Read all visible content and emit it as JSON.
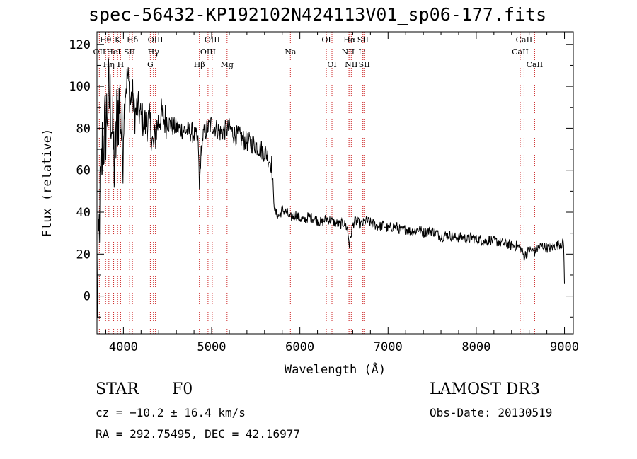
{
  "header": {
    "title": "spec-56432-KP192102N424113V01_sp06-177.fits"
  },
  "info": {
    "object_type": "STAR",
    "spectral_class": "F0",
    "survey": "LAMOST DR3",
    "cz": "cz = −10.2 ± 16.4 km/s",
    "obs_date": "Obs-Date: 20130519",
    "ra_dec": "RA = 292.75495, DEC =  42.16977"
  },
  "colors": {
    "spectrum": "#000000",
    "line_marker": "#cc2222",
    "axes": "#000000"
  },
  "chart_data": {
    "type": "line",
    "title": "spec-56432-KP192102N424113V01_sp06-177.fits",
    "xlabel": "Wavelength (Å)",
    "ylabel": "Flux (relative)",
    "xlim": [
      3700,
      9100
    ],
    "ylim": [
      -18,
      126
    ],
    "x_ticks": [
      4000,
      5000,
      6000,
      7000,
      8000,
      9000
    ],
    "y_ticks": [
      0,
      20,
      40,
      60,
      80,
      100,
      120
    ],
    "series": [
      {
        "name": "spectrum",
        "x": [
          3700,
          3730,
          3760,
          3800,
          3830,
          3860,
          3900,
          3930,
          3960,
          3990,
          4020,
          4050,
          4080,
          4100,
          4130,
          4160,
          4200,
          4250,
          4300,
          4340,
          4380,
          4420,
          4480,
          4550,
          4620,
          4700,
          4780,
          4820,
          4850,
          4861,
          4875,
          4900,
          4950,
          5000,
          5050,
          5100,
          5150,
          5200,
          5260,
          5320,
          5380,
          5440,
          5500,
          5560,
          5620,
          5680,
          5700,
          5720,
          5760,
          5800,
          5850,
          5890,
          5950,
          6000,
          6050,
          6100,
          6150,
          6200,
          6250,
          6300,
          6350,
          6400,
          6450,
          6500,
          6540,
          6563,
          6590,
          6620,
          6660,
          6700,
          6750,
          6800,
          6850,
          6900,
          6950,
          7000,
          7050,
          7100,
          7150,
          7200,
          7250,
          7300,
          7350,
          7400,
          7450,
          7500,
          7550,
          7600,
          7650,
          7700,
          7750,
          7800,
          7850,
          7900,
          7950,
          8000,
          8050,
          8100,
          8150,
          8200,
          8250,
          8300,
          8350,
          8400,
          8450,
          8498,
          8542,
          8600,
          8662,
          8700,
          8750,
          8800,
          8850,
          8900,
          8950,
          8990,
          9000
        ],
        "values": [
          -10,
          40,
          70,
          82,
          95,
          90,
          60,
          88,
          92,
          70,
          98,
          105,
          92,
          97,
          86,
          90,
          85,
          82,
          83,
          70,
          81,
          86,
          84,
          81,
          80,
          79,
          78,
          76,
          72,
          50,
          65,
          76,
          80,
          82,
          80,
          78,
          79,
          80,
          77,
          76,
          74,
          73,
          72,
          70,
          68,
          63,
          48,
          40,
          38,
          41,
          40,
          37,
          39,
          37,
          36,
          38,
          37,
          36,
          35,
          37,
          36,
          35,
          34,
          35,
          32,
          24,
          32,
          36,
          35,
          34,
          36,
          35,
          34,
          33,
          34,
          32,
          33,
          33,
          31,
          32,
          31,
          31,
          32,
          30,
          31,
          31,
          30,
          28,
          29,
          29,
          28,
          28,
          28,
          27,
          28,
          27,
          27,
          26,
          27,
          26,
          26,
          25,
          25,
          24,
          24,
          23,
          19,
          22,
          21,
          23,
          24,
          23,
          23,
          24,
          25,
          25,
          6
        ]
      }
    ],
    "line_markers": [
      {
        "label": "OII",
        "wavelength": 3727,
        "row": 1
      },
      {
        "label": "Hθ",
        "wavelength": 3798,
        "row": 0
      },
      {
        "label": "Hη",
        "wavelength": 3835,
        "row": 2
      },
      {
        "label": "HeI",
        "wavelength": 3889,
        "row": 1
      },
      {
        "label": "K",
        "wavelength": 3934,
        "row": 0
      },
      {
        "label": "H",
        "wavelength": 3968,
        "row": 2
      },
      {
        "label": "SII",
        "wavelength": 4070,
        "row": 1
      },
      {
        "label": "Hδ",
        "wavelength": 4102,
        "row": 0
      },
      {
        "label": "G",
        "wavelength": 4305,
        "row": 2
      },
      {
        "label": "Hγ",
        "wavelength": 4340,
        "row": 1
      },
      {
        "label": "OIII",
        "wavelength": 4363,
        "row": 0
      },
      {
        "label": "Hβ",
        "wavelength": 4861,
        "row": 2
      },
      {
        "label": "OIII",
        "wavelength": 4959,
        "row": 1
      },
      {
        "label": "OIII",
        "wavelength": 5007,
        "row": 0
      },
      {
        "label": "Mg",
        "wavelength": 5175,
        "row": 2
      },
      {
        "label": "Na",
        "wavelength": 5893,
        "row": 1
      },
      {
        "label": "OI",
        "wavelength": 6300,
        "row": 0
      },
      {
        "label": "OI",
        "wavelength": 6364,
        "row": 2
      },
      {
        "label": "NII",
        "wavelength": 6548,
        "row": 1
      },
      {
        "label": "Hα",
        "wavelength": 6563,
        "row": 0
      },
      {
        "label": "NII",
        "wavelength": 6583,
        "row": 2
      },
      {
        "label": "Li",
        "wavelength": 6707,
        "row": 1
      },
      {
        "label": "SII",
        "wavelength": 6716,
        "row": 0
      },
      {
        "label": "SII",
        "wavelength": 6731,
        "row": 2
      },
      {
        "label": "CaII",
        "wavelength": 8498,
        "row": 1
      },
      {
        "label": "CaII",
        "wavelength": 8542,
        "row": 0
      },
      {
        "label": "CaII",
        "wavelength": 8662,
        "row": 2
      }
    ]
  }
}
